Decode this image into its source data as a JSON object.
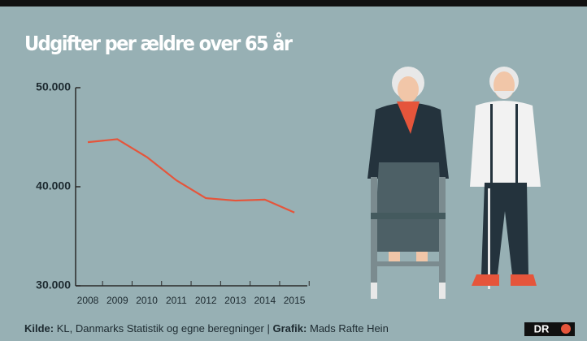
{
  "chart_data": {
    "type": "line",
    "title": "Udgifter per ældre over 65 år",
    "categories": [
      "2008",
      "2009",
      "2010",
      "2011",
      "2012",
      "2013",
      "2014",
      "2015"
    ],
    "values": [
      44500,
      44800,
      43000,
      40650,
      38850,
      38600,
      38700,
      37400
    ],
    "color": "#e5553b",
    "ylim": [
      30000,
      50000
    ],
    "yticks": [
      {
        "value": 30000,
        "label": "30.000"
      },
      {
        "value": 40000,
        "label": "40.000"
      },
      {
        "value": 50000,
        "label": "50.000"
      }
    ],
    "grid": false
  },
  "footer": {
    "source_label": "Kilde:",
    "source": "KL, Danmarks Statistik og egne beregninger |",
    "credit_label": "Grafik:",
    "credit": "Mads Rafte Hein",
    "logo": "DR"
  }
}
